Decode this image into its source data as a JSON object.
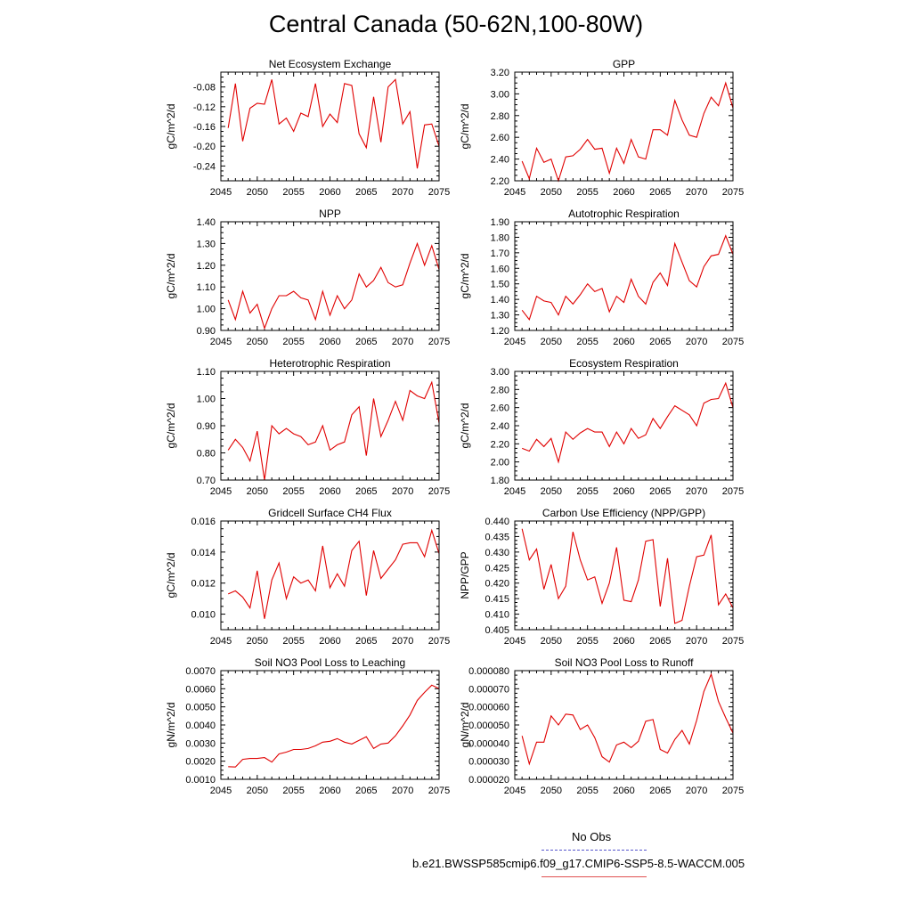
{
  "title": "Central Canada (50-62N,100-80W)",
  "legend": {
    "obs_label": "No Obs",
    "obs_color": "#5555cc",
    "case_label": "b.e21.BWSSP585cmip6.f09_g17.CMIP6-SSP5-8.5-WACCM.005",
    "case_color": "#e05050"
  },
  "line_color": "#e00000",
  "chart_data": [
    {
      "type": "line",
      "title": "Net Ecosystem Exchange",
      "ylabel": "gC/m^2/d",
      "xlim": [
        2045,
        2075
      ],
      "ylim": [
        -0.27,
        -0.05
      ],
      "yticks": [
        -0.24,
        -0.2,
        -0.16,
        -0.12,
        -0.08
      ],
      "ytick_labels": [
        "-0.24",
        "-0.20",
        "-0.16",
        "-0.12",
        "-0.08"
      ],
      "xticks": [
        2045,
        2050,
        2055,
        2060,
        2065,
        2070,
        2075
      ],
      "x": [
        2046,
        2047,
        2048,
        2049,
        2050,
        2051,
        2052,
        2053,
        2054,
        2055,
        2056,
        2057,
        2058,
        2059,
        2060,
        2061,
        2062,
        2063,
        2064,
        2065,
        2066,
        2067,
        2068,
        2069,
        2070,
        2071,
        2072,
        2073,
        2074,
        2075
      ],
      "values": [
        -0.163,
        -0.073,
        -0.19,
        -0.123,
        -0.113,
        -0.115,
        -0.065,
        -0.155,
        -0.143,
        -0.17,
        -0.133,
        -0.14,
        -0.073,
        -0.16,
        -0.135,
        -0.152,
        -0.073,
        -0.077,
        -0.175,
        -0.203,
        -0.1,
        -0.192,
        -0.08,
        -0.065,
        -0.155,
        -0.13,
        -0.245,
        -0.157,
        -0.155,
        -0.2
      ]
    },
    {
      "type": "line",
      "title": "GPP",
      "ylabel": "gC/m^2/d",
      "xlim": [
        2045,
        2075
      ],
      "ylim": [
        2.2,
        3.2
      ],
      "yticks": [
        2.2,
        2.4,
        2.6,
        2.8,
        3.0,
        3.2
      ],
      "ytick_labels": [
        "2.20",
        "2.40",
        "2.60",
        "2.80",
        "3.00",
        "3.20"
      ],
      "xticks": [
        2045,
        2050,
        2055,
        2060,
        2065,
        2070,
        2075
      ],
      "x": [
        2046,
        2047,
        2048,
        2049,
        2050,
        2051,
        2052,
        2053,
        2054,
        2055,
        2056,
        2057,
        2058,
        2059,
        2060,
        2061,
        2062,
        2063,
        2064,
        2065,
        2066,
        2067,
        2068,
        2069,
        2070,
        2071,
        2072,
        2073,
        2074,
        2075
      ],
      "values": [
        2.38,
        2.22,
        2.5,
        2.37,
        2.4,
        2.2,
        2.42,
        2.43,
        2.49,
        2.58,
        2.49,
        2.5,
        2.27,
        2.5,
        2.36,
        2.58,
        2.42,
        2.4,
        2.67,
        2.67,
        2.62,
        2.94,
        2.76,
        2.62,
        2.6,
        2.82,
        2.97,
        2.89,
        3.1,
        2.87
      ]
    },
    {
      "type": "line",
      "title": "NPP",
      "ylabel": "gC/m^2/d",
      "xlim": [
        2045,
        2075
      ],
      "ylim": [
        0.9,
        1.4
      ],
      "yticks": [
        0.9,
        1.0,
        1.1,
        1.2,
        1.3,
        1.4
      ],
      "ytick_labels": [
        "0.90",
        "1.00",
        "1.10",
        "1.20",
        "1.30",
        "1.40"
      ],
      "xticks": [
        2045,
        2050,
        2055,
        2060,
        2065,
        2070,
        2075
      ],
      "x": [
        2046,
        2047,
        2048,
        2049,
        2050,
        2051,
        2052,
        2053,
        2054,
        2055,
        2056,
        2057,
        2058,
        2059,
        2060,
        2061,
        2062,
        2063,
        2064,
        2065,
        2066,
        2067,
        2068,
        2069,
        2070,
        2071,
        2072,
        2073,
        2074,
        2075
      ],
      "values": [
        1.04,
        0.95,
        1.08,
        0.98,
        1.02,
        0.91,
        1.0,
        1.06,
        1.06,
        1.08,
        1.05,
        1.04,
        0.95,
        1.08,
        0.97,
        1.06,
        1.0,
        1.04,
        1.16,
        1.1,
        1.13,
        1.19,
        1.12,
        1.1,
        1.11,
        1.21,
        1.3,
        1.2,
        1.29,
        1.18
      ]
    },
    {
      "type": "line",
      "title": "Autotrophic Respiration",
      "ylabel": "gC/m^2/d",
      "xlim": [
        2045,
        2075
      ],
      "ylim": [
        1.2,
        1.9
      ],
      "yticks": [
        1.2,
        1.3,
        1.4,
        1.5,
        1.6,
        1.7,
        1.8,
        1.9
      ],
      "ytick_labels": [
        "1.20",
        "1.30",
        "1.40",
        "1.50",
        "1.60",
        "1.70",
        "1.80",
        "1.90"
      ],
      "xticks": [
        2045,
        2050,
        2055,
        2060,
        2065,
        2070,
        2075
      ],
      "x": [
        2046,
        2047,
        2048,
        2049,
        2050,
        2051,
        2052,
        2053,
        2054,
        2055,
        2056,
        2057,
        2058,
        2059,
        2060,
        2061,
        2062,
        2063,
        2064,
        2065,
        2066,
        2067,
        2068,
        2069,
        2070,
        2071,
        2072,
        2073,
        2074,
        2075
      ],
      "values": [
        1.33,
        1.27,
        1.42,
        1.39,
        1.38,
        1.3,
        1.42,
        1.37,
        1.43,
        1.5,
        1.45,
        1.47,
        1.32,
        1.42,
        1.38,
        1.53,
        1.42,
        1.37,
        1.51,
        1.57,
        1.49,
        1.76,
        1.64,
        1.52,
        1.48,
        1.61,
        1.68,
        1.69,
        1.81,
        1.69
      ]
    },
    {
      "type": "line",
      "title": "Heterotrophic Respiration",
      "ylabel": "gC/m^2/d",
      "xlim": [
        2045,
        2075
      ],
      "ylim": [
        0.7,
        1.1
      ],
      "yticks": [
        0.7,
        0.8,
        0.9,
        1.0,
        1.1
      ],
      "ytick_labels": [
        "0.70",
        "0.80",
        "0.90",
        "1.00",
        "1.10"
      ],
      "xticks": [
        2045,
        2050,
        2055,
        2060,
        2065,
        2070,
        2075
      ],
      "x": [
        2046,
        2047,
        2048,
        2049,
        2050,
        2051,
        2052,
        2053,
        2054,
        2055,
        2056,
        2057,
        2058,
        2059,
        2060,
        2061,
        2062,
        2063,
        2064,
        2065,
        2066,
        2067,
        2068,
        2069,
        2070,
        2071,
        2072,
        2073,
        2074,
        2075
      ],
      "values": [
        0.81,
        0.85,
        0.82,
        0.77,
        0.88,
        0.7,
        0.9,
        0.87,
        0.89,
        0.87,
        0.86,
        0.83,
        0.84,
        0.9,
        0.81,
        0.83,
        0.84,
        0.94,
        0.97,
        0.79,
        1.0,
        0.86,
        0.92,
        0.99,
        0.92,
        1.03,
        1.01,
        1.0,
        1.06,
        0.91
      ]
    },
    {
      "type": "line",
      "title": "Ecosystem Respiration",
      "ylabel": "gC/m^2/d",
      "xlim": [
        2045,
        2075
      ],
      "ylim": [
        1.8,
        3.0
      ],
      "yticks": [
        1.8,
        2.0,
        2.2,
        2.4,
        2.6,
        2.8,
        3.0
      ],
      "ytick_labels": [
        "1.80",
        "2.00",
        "2.20",
        "2.40",
        "2.60",
        "2.80",
        "3.00"
      ],
      "xticks": [
        2045,
        2050,
        2055,
        2060,
        2065,
        2070,
        2075
      ],
      "x": [
        2046,
        2047,
        2048,
        2049,
        2050,
        2051,
        2052,
        2053,
        2054,
        2055,
        2056,
        2057,
        2058,
        2059,
        2060,
        2061,
        2062,
        2063,
        2064,
        2065,
        2066,
        2067,
        2068,
        2069,
        2070,
        2071,
        2072,
        2073,
        2074,
        2075
      ],
      "values": [
        2.15,
        2.12,
        2.25,
        2.17,
        2.26,
        2.0,
        2.33,
        2.25,
        2.32,
        2.37,
        2.33,
        2.33,
        2.17,
        2.33,
        2.2,
        2.37,
        2.26,
        2.3,
        2.48,
        2.37,
        2.5,
        2.62,
        2.57,
        2.52,
        2.4,
        2.65,
        2.69,
        2.7,
        2.87,
        2.6
      ]
    },
    {
      "type": "line",
      "title": "Gridcell Surface CH4 Flux",
      "ylabel": "gC/m^2/d",
      "xlim": [
        2045,
        2075
      ],
      "ylim": [
        0.009,
        0.016
      ],
      "yticks": [
        0.01,
        0.012,
        0.014,
        0.016
      ],
      "ytick_labels": [
        "0.010",
        "0.012",
        "0.014",
        "0.016"
      ],
      "xticks": [
        2045,
        2050,
        2055,
        2060,
        2065,
        2070,
        2075
      ],
      "x": [
        2046,
        2047,
        2048,
        2049,
        2050,
        2051,
        2052,
        2053,
        2054,
        2055,
        2056,
        2057,
        2058,
        2059,
        2060,
        2061,
        2062,
        2063,
        2064,
        2065,
        2066,
        2067,
        2068,
        2069,
        2070,
        2071,
        2072,
        2073,
        2074,
        2075
      ],
      "values": [
        0.0113,
        0.0115,
        0.0111,
        0.0104,
        0.0128,
        0.0097,
        0.0122,
        0.0133,
        0.011,
        0.0124,
        0.012,
        0.0122,
        0.0115,
        0.0144,
        0.0117,
        0.0126,
        0.0118,
        0.0141,
        0.0147,
        0.0112,
        0.0141,
        0.0123,
        0.0129,
        0.0135,
        0.0145,
        0.0146,
        0.0146,
        0.0137,
        0.0154,
        0.0139
      ]
    },
    {
      "type": "line",
      "title": "Carbon Use Efficiency (NPP/GPP)",
      "ylabel": "NPP/GPP",
      "xlim": [
        2045,
        2075
      ],
      "ylim": [
        0.405,
        0.44
      ],
      "yticks": [
        0.405,
        0.41,
        0.415,
        0.42,
        0.425,
        0.43,
        0.435,
        0.44
      ],
      "ytick_labels": [
        "0.405",
        "0.410",
        "0.415",
        "0.420",
        "0.425",
        "0.430",
        "0.435",
        "0.440"
      ],
      "xticks": [
        2045,
        2050,
        2055,
        2060,
        2065,
        2070,
        2075
      ],
      "x": [
        2046,
        2047,
        2048,
        2049,
        2050,
        2051,
        2052,
        2053,
        2054,
        2055,
        2056,
        2057,
        2058,
        2059,
        2060,
        2061,
        2062,
        2063,
        2064,
        2065,
        2066,
        2067,
        2068,
        2069,
        2070,
        2071,
        2072,
        2073,
        2074,
        2075
      ],
      "values": [
        0.4375,
        0.4275,
        0.431,
        0.418,
        0.426,
        0.415,
        0.419,
        0.4365,
        0.4275,
        0.421,
        0.422,
        0.4135,
        0.42,
        0.4315,
        0.4145,
        0.414,
        0.421,
        0.4335,
        0.434,
        0.4125,
        0.428,
        0.407,
        0.408,
        0.419,
        0.4285,
        0.429,
        0.4355,
        0.413,
        0.4165,
        0.412
      ]
    },
    {
      "type": "line",
      "title": "Soil NO3 Pool Loss to Leaching",
      "ylabel": "gN/m^2/d",
      "xlim": [
        2045,
        2075
      ],
      "ylim": [
        0.001,
        0.007
      ],
      "yticks": [
        0.001,
        0.002,
        0.003,
        0.004,
        0.005,
        0.006,
        0.007
      ],
      "ytick_labels": [
        "0.0010",
        "0.0020",
        "0.0030",
        "0.0040",
        "0.0050",
        "0.0060",
        "0.0070"
      ],
      "xticks": [
        2045,
        2050,
        2055,
        2060,
        2065,
        2070,
        2075
      ],
      "x": [
        2046,
        2047,
        2048,
        2049,
        2050,
        2051,
        2052,
        2053,
        2054,
        2055,
        2056,
        2057,
        2058,
        2059,
        2060,
        2061,
        2062,
        2063,
        2064,
        2065,
        2066,
        2067,
        2068,
        2069,
        2070,
        2071,
        2072,
        2073,
        2074,
        2075
      ],
      "values": [
        0.0017,
        0.00168,
        0.0021,
        0.00215,
        0.00215,
        0.0022,
        0.00195,
        0.0024,
        0.0025,
        0.00265,
        0.00265,
        0.0027,
        0.00285,
        0.00305,
        0.0031,
        0.00325,
        0.00305,
        0.00295,
        0.00315,
        0.00335,
        0.0027,
        0.00295,
        0.003,
        0.0034,
        0.00395,
        0.00455,
        0.00535,
        0.0058,
        0.0062,
        0.006
      ]
    },
    {
      "type": "line",
      "title": "Soil NO3 Pool Loss to Runoff",
      "ylabel": "gN/m^2/d",
      "xlim": [
        2045,
        2075
      ],
      "ylim": [
        2e-05,
        8e-05
      ],
      "yticks": [
        2e-05,
        3e-05,
        4e-05,
        5e-05,
        6e-05,
        7e-05,
        8e-05
      ],
      "ytick_labels": [
        "0.000020",
        "0.000030",
        "0.000040",
        "0.000050",
        "0.000060",
        "0.000070",
        "0.000080"
      ],
      "xticks": [
        2045,
        2050,
        2055,
        2060,
        2065,
        2070,
        2075
      ],
      "x": [
        2046,
        2047,
        2048,
        2049,
        2050,
        2051,
        2052,
        2053,
        2054,
        2055,
        2056,
        2057,
        2058,
        2059,
        2060,
        2061,
        2062,
        2063,
        2064,
        2065,
        2066,
        2067,
        2068,
        2069,
        2070,
        2071,
        2072,
        2073,
        2074,
        2075
      ],
      "values": [
        4.4e-05,
        2.85e-05,
        4.05e-05,
        4.05e-05,
        5.5e-05,
        5e-05,
        5.6e-05,
        5.55e-05,
        4.75e-05,
        5e-05,
        4.3e-05,
        3.25e-05,
        2.95e-05,
        3.9e-05,
        4.05e-05,
        3.75e-05,
        4.1e-05,
        5.2e-05,
        5.3e-05,
        3.65e-05,
        3.45e-05,
        4.2e-05,
        4.7e-05,
        3.95e-05,
        5.25e-05,
        6.85e-05,
        7.8e-05,
        6.3e-05,
        5.4e-05,
        4.55e-05
      ]
    }
  ]
}
